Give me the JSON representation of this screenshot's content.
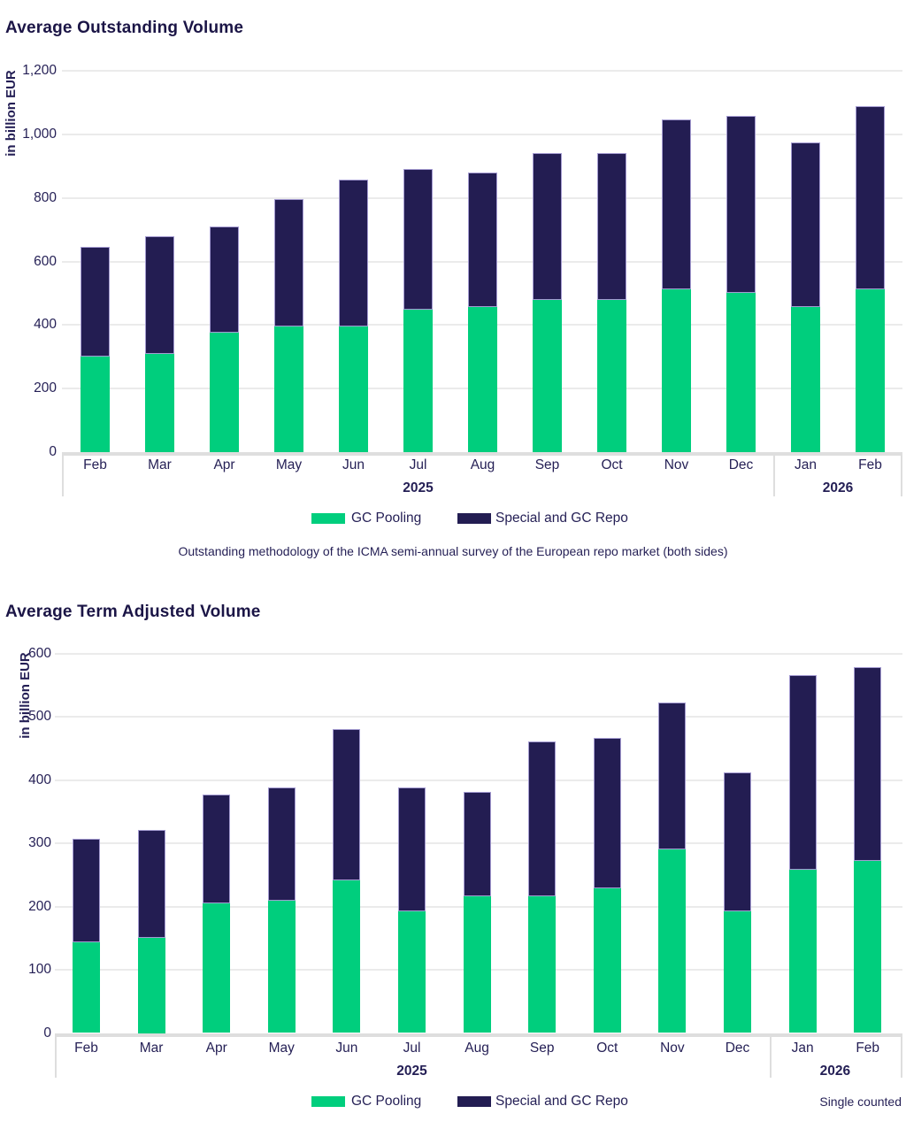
{
  "colors": {
    "gc_pooling": "#00ce7d",
    "special_and_gc_repo": "#231d52",
    "text": "#241f55",
    "title": "#1b1546",
    "gridline": "#ebebeb",
    "axis_line": "#dedede",
    "bar_border": "#a49bd1"
  },
  "chart_data": [
    {
      "type": "bar",
      "stacked": true,
      "title": "Average Outstanding Volume",
      "ylabel": "in billion EUR",
      "categories": [
        "Feb",
        "Mar",
        "Apr",
        "May",
        "Jun",
        "Jul",
        "Aug",
        "Sep",
        "Oct",
        "Nov",
        "Dec",
        "Jan",
        "Feb"
      ],
      "year_groups": [
        {
          "label": "2025",
          "span": [
            0,
            10
          ]
        },
        {
          "label": "2026",
          "span": [
            11,
            12
          ]
        }
      ],
      "series": [
        {
          "name": "GC Pooling",
          "color": "#00ce7d",
          "values": [
            300,
            310,
            375,
            395,
            395,
            447,
            456,
            480,
            480,
            511,
            500,
            457,
            511
          ]
        },
        {
          "name": "Special and GC Repo",
          "color": "#231d52",
          "values": [
            345,
            370,
            335,
            400,
            463,
            443,
            424,
            462,
            462,
            535,
            557,
            518,
            579
          ]
        }
      ],
      "totals": [
        645,
        680,
        710,
        795,
        858,
        890,
        880,
        942,
        942,
        1046,
        1057,
        975,
        1090
      ],
      "ylim": [
        0,
        1200
      ],
      "ytick_step": 200,
      "grid": true,
      "legend_position": "bottom",
      "note": "Outstanding methodology of the ICMA semi-annual survey of the European repo market (both sides)"
    },
    {
      "type": "bar",
      "stacked": true,
      "title": "Average Term Adjusted Volume",
      "ylabel": "in billion EUR",
      "categories": [
        "Feb",
        "Mar",
        "Apr",
        "May",
        "Jun",
        "Jul",
        "Aug",
        "Sep",
        "Oct",
        "Nov",
        "Dec",
        "Jan",
        "Feb"
      ],
      "year_groups": [
        {
          "label": "2025",
          "span": [
            0,
            10
          ]
        },
        {
          "label": "2026",
          "span": [
            11,
            12
          ]
        }
      ],
      "series": [
        {
          "name": "GC Pooling",
          "color": "#00ce7d",
          "values": [
            143,
            150,
            205,
            210,
            241,
            192,
            217,
            216,
            229,
            291,
            192,
            259,
            272
          ]
        },
        {
          "name": "Special and GC Repo",
          "color": "#231d52",
          "values": [
            165,
            171,
            172,
            179,
            240,
            197,
            165,
            246,
            238,
            232,
            221,
            307,
            307
          ]
        }
      ],
      "totals": [
        308,
        321,
        377,
        389,
        481,
        389,
        382,
        462,
        467,
        523,
        413,
        566,
        579
      ],
      "ylim": [
        0,
        600
      ],
      "ytick_step": 100,
      "grid": true,
      "legend_position": "bottom",
      "footnote": "Single counted"
    }
  ]
}
